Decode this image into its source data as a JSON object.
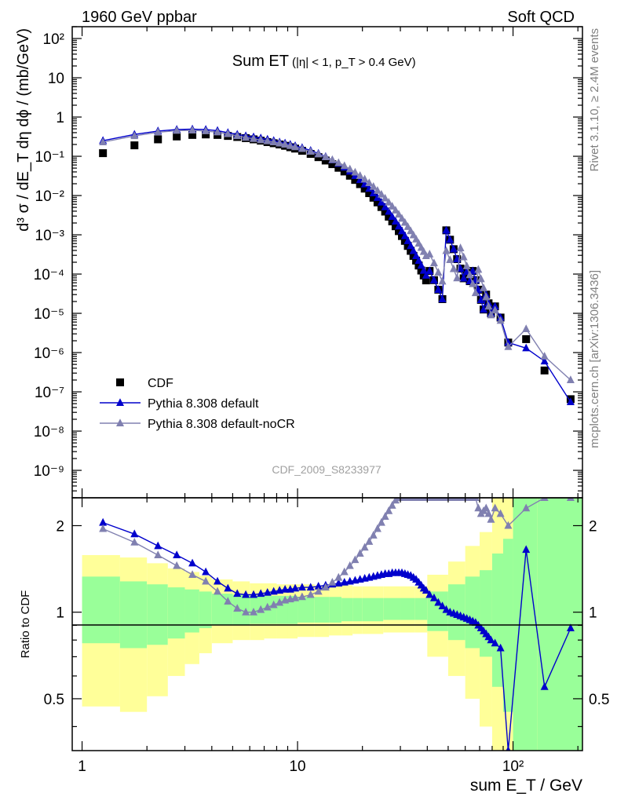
{
  "header": {
    "left": "1960 GeV ppbar",
    "right": "Soft QCD"
  },
  "side_labels": {
    "rivet": "Rivet 3.1.10, ≥ 2.4M events",
    "mcplots": "mcplots.cern.ch [arXiv:1306.3436]"
  },
  "chart_data": [
    {
      "type": "scatter",
      "title": "Sum ET",
      "title_cuts": "(|η| < 1, p_T > 0.4 GeV)",
      "ylabel": "d³ σ / dE_T dη dϕ / (mb/GeV)",
      "analysis_id": "CDF_2009_S8233977",
      "xscale": "log",
      "yscale": "log",
      "xlim": [
        0.9,
        210
      ],
      "ylim": [
        2e-10,
        200
      ],
      "xticks": [
        "1",
        "10",
        "10²"
      ],
      "yticks": [
        "10⁻⁹",
        "10⁻⁸",
        "10⁻⁷",
        "10⁻⁶",
        "10⁻⁵",
        "10⁻⁴",
        "10⁻³",
        "10⁻²",
        "10⁻¹",
        "1",
        "10",
        "10²"
      ],
      "legend_position": "bottom-left",
      "series": [
        {
          "name": "CDF",
          "marker": "square",
          "color": "#000000",
          "x": [
            1.25,
            1.75,
            2.25,
            2.75,
            3.25,
            3.75,
            4.25,
            4.75,
            5.25,
            5.75,
            6.25,
            6.75,
            7.25,
            7.75,
            8.25,
            8.75,
            9.25,
            9.75,
            10.5,
            11.5,
            12.5,
            13.5,
            14.5,
            15.5,
            16.5,
            17.5,
            18.5,
            19.5,
            20.5,
            21.5,
            22.5,
            23.5,
            24.5,
            25.5,
            26.5,
            27.5,
            28.5,
            29.5,
            30.5,
            31.5,
            32.5,
            33.5,
            34.5,
            35.5,
            36.5,
            37.5,
            38.5,
            39.5,
            41.0,
            43.0,
            45.0,
            47.0,
            49.0,
            51.0,
            53.0,
            55.0,
            57.0,
            59.0,
            61.0,
            63.0,
            65.0,
            67.0,
            69.0,
            71.0,
            73.0,
            75.0,
            77.0,
            79.0,
            82.5,
            87.5,
            95.0,
            115.0,
            140.0,
            185.0
          ],
          "values": [
            0.12,
            0.19,
            0.27,
            0.32,
            0.35,
            0.36,
            0.35,
            0.33,
            0.31,
            0.29,
            0.27,
            0.25,
            0.23,
            0.215,
            0.2,
            0.185,
            0.17,
            0.157,
            0.138,
            0.115,
            0.095,
            0.078,
            0.063,
            0.051,
            0.041,
            0.032,
            0.025,
            0.0195,
            0.015,
            0.0115,
            0.0088,
            0.0067,
            0.0051,
            0.0039,
            0.0029,
            0.0022,
            0.00165,
            0.00124,
            0.00093,
            0.0007,
            0.00052,
            0.00039,
            0.00029,
            0.00022,
            0.000165,
            0.000123,
            9.2e-05,
            6.9e-05,
            0.00012,
            7e-05,
            4e-05,
            2.3e-05,
            0.0013,
            0.00075,
            0.00043,
            0.00024,
            0.000138,
            7.8e-05,
            0.000115,
            6.6e-05,
            0.00012,
            7e-05,
            4e-05,
            2.2e-05,
            1.25e-05,
            3e-05,
            1.8e-05,
            1e-05,
            1.5e-05,
            7.8e-06,
            1.8e-06,
            2.2e-06,
            3.5e-07,
            6.5e-08
          ]
        },
        {
          "name": "Pythia 8.308 default",
          "marker": "triangle",
          "color": "#0000cc",
          "x": [
            1.25,
            1.75,
            2.25,
            2.75,
            3.25,
            3.75,
            4.25,
            4.75,
            5.25,
            5.75,
            6.25,
            6.75,
            7.25,
            7.75,
            8.25,
            8.75,
            9.25,
            9.75,
            10.5,
            11.5,
            12.5,
            13.5,
            14.5,
            15.5,
            16.5,
            17.5,
            18.5,
            19.5,
            20.5,
            21.5,
            22.5,
            23.5,
            24.5,
            25.5,
            26.5,
            27.5,
            28.5,
            29.5,
            30.5,
            31.5,
            32.5,
            33.5,
            34.5,
            35.5,
            36.5,
            37.5,
            38.5,
            39.5,
            41.0,
            43.0,
            45.0,
            47.0,
            49.0,
            51.0,
            53.0,
            55.0,
            57.0,
            59.0,
            61.0,
            63.0,
            65.0,
            67.0,
            69.0,
            71.0,
            73.0,
            75.0,
            77.0,
            79.0,
            82.5,
            87.5,
            95.0,
            115.0,
            140.0,
            185.0
          ],
          "values": [
            0.25,
            0.36,
            0.44,
            0.48,
            0.49,
            0.48,
            0.45,
            0.4,
            0.36,
            0.33,
            0.31,
            0.29,
            0.27,
            0.25,
            0.23,
            0.215,
            0.2,
            0.185,
            0.165,
            0.14,
            0.118,
            0.098,
            0.08,
            0.065,
            0.052,
            0.041,
            0.032,
            0.025,
            0.0195,
            0.015,
            0.0115,
            0.0088,
            0.0067,
            0.0051,
            0.0039,
            0.0029,
            0.0022,
            0.00165,
            0.00124,
            0.00093,
            0.0007,
            0.00052,
            0.00039,
            0.00029,
            0.00022,
            0.000165,
            0.000123,
            9.2e-05,
            0.00012,
            7e-05,
            4e-05,
            2.3e-05,
            0.0013,
            0.00075,
            0.00043,
            0.00024,
            0.000138,
            7.8e-05,
            0.000115,
            6.6e-05,
            0.00012,
            7e-05,
            4e-05,
            2.2e-05,
            1.25e-05,
            3e-05,
            1.8e-05,
            1e-05,
            1.5e-05,
            7.8e-06,
            1.8e-06,
            1.3e-06,
            6e-07,
            5.5e-08
          ]
        },
        {
          "name": "Pythia 8.308 default-noCR",
          "marker": "triangle",
          "color": "#8080b0",
          "x": [
            1.25,
            1.75,
            2.25,
            2.75,
            3.25,
            3.75,
            4.25,
            4.75,
            5.25,
            5.75,
            6.25,
            6.75,
            7.25,
            7.75,
            8.25,
            8.75,
            9.25,
            9.75,
            10.5,
            11.5,
            12.5,
            13.5,
            14.5,
            15.5,
            16.5,
            17.5,
            18.5,
            19.5,
            20.5,
            21.5,
            22.5,
            23.5,
            24.5,
            25.5,
            26.5,
            27.5,
            28.5,
            29.5,
            30.5,
            31.5,
            32.5,
            33.5,
            34.5,
            35.5,
            36.5,
            37.5,
            38.5,
            39.5,
            41.0,
            43.0,
            45.0,
            47.0,
            49.0,
            51.0,
            53.0,
            55.0,
            57.0,
            59.0,
            61.0,
            63.0,
            65.0,
            67.0,
            69.0,
            71.0,
            73.0,
            75.0,
            77.0,
            79.0,
            82.5,
            87.5,
            95.0,
            115.0,
            140.0,
            185.0
          ],
          "values": [
            0.23,
            0.33,
            0.41,
            0.45,
            0.46,
            0.44,
            0.41,
            0.37,
            0.33,
            0.3,
            0.28,
            0.26,
            0.245,
            0.23,
            0.215,
            0.2,
            0.185,
            0.172,
            0.155,
            0.132,
            0.113,
            0.096,
            0.081,
            0.068,
            0.057,
            0.047,
            0.039,
            0.032,
            0.026,
            0.021,
            0.0168,
            0.0134,
            0.0107,
            0.0085,
            0.0067,
            0.0053,
            0.0042,
            0.0033,
            0.0026,
            0.00205,
            0.0016,
            0.00125,
            0.00098,
            0.00077,
            0.0006,
            0.00047,
            0.00037,
            0.00029,
            0.00032,
            0.00019,
            0.00011,
            6.5e-05,
            0.00039,
            0.00023,
            0.000135,
            7.9e-05,
            0.00046,
            0.00027,
            0.00016,
            9.5e-05,
            5.6e-05,
            3.3e-05,
            0.00013,
            7.5e-05,
            4.4e-05,
            2.6e-05,
            1.5e-05,
            9e-06,
            1.2e-05,
            6.5e-06,
            1.4e-06,
            4e-06,
            8e-07,
            2e-07
          ]
        }
      ]
    },
    {
      "type": "scatter",
      "ylabel": "Ratio to CDF",
      "xlabel": "sum E_T / GeV",
      "xscale": "log",
      "yscale": "log",
      "xlim": [
        0.9,
        210
      ],
      "ylim": [
        0.33,
        2.5
      ],
      "xticks": [
        "1",
        "10",
        "10²"
      ],
      "yticks": [
        "0.5",
        "1",
        "2"
      ],
      "bands": {
        "bin_edges": [
          1.0,
          1.5,
          2.0,
          2.5,
          3.0,
          3.5,
          4.0,
          5.0,
          6.0,
          7.0,
          8.0,
          9.0,
          10.0,
          12.0,
          14.0,
          16.0,
          18.0,
          20.0,
          25.0,
          30.0,
          35.0,
          40.0,
          50.0,
          60.0,
          70.0,
          80.0,
          90.0,
          100.0,
          130.0,
          210.0
        ],
        "inner_lo": [
          0.78,
          0.75,
          0.77,
          0.81,
          0.85,
          0.88,
          0.9,
          0.9,
          0.91,
          0.91,
          0.91,
          0.91,
          0.92,
          0.92,
          0.92,
          0.93,
          0.93,
          0.93,
          0.94,
          0.94,
          0.94,
          0.86,
          0.8,
          0.75,
          0.7,
          0.55,
          0.45,
          0.33,
          0.33
        ],
        "inner_hi": [
          1.33,
          1.28,
          1.25,
          1.22,
          1.2,
          1.18,
          1.16,
          1.15,
          1.14,
          1.14,
          1.14,
          1.14,
          1.13,
          1.13,
          1.13,
          1.12,
          1.12,
          1.12,
          1.12,
          1.12,
          1.12,
          1.18,
          1.25,
          1.33,
          1.4,
          1.6,
          1.8,
          2.5,
          2.5
        ],
        "outer_lo": [
          0.47,
          0.45,
          0.51,
          0.6,
          0.66,
          0.72,
          0.78,
          0.8,
          0.8,
          0.81,
          0.81,
          0.81,
          0.82,
          0.82,
          0.83,
          0.83,
          0.84,
          0.84,
          0.85,
          0.85,
          0.85,
          0.7,
          0.6,
          0.5,
          0.4,
          0.33,
          0.33,
          0.33,
          0.33
        ],
        "outer_hi": [
          1.58,
          1.55,
          1.48,
          1.42,
          1.38,
          1.34,
          1.3,
          1.28,
          1.26,
          1.26,
          1.25,
          1.25,
          1.25,
          1.24,
          1.24,
          1.24,
          1.23,
          1.23,
          1.23,
          1.23,
          1.23,
          1.35,
          1.5,
          1.7,
          1.9,
          2.5,
          2.5,
          2.5,
          2.5
        ]
      },
      "series": [
        {
          "name": "Pythia 8.308 default",
          "x": [
            1.25,
            1.75,
            2.25,
            2.75,
            3.25,
            3.75,
            4.25,
            4.75,
            5.25,
            5.75,
            6.25,
            6.75,
            7.25,
            7.75,
            8.25,
            8.75,
            9.25,
            9.75,
            10.5,
            11.5,
            12.5,
            13.5,
            14.5,
            15.5,
            16.5,
            17.5,
            18.5,
            19.5,
            20.5,
            21.5,
            22.5,
            23.5,
            24.5,
            25.5,
            26.5,
            27.5,
            28.5,
            29.5,
            30.5,
            31.5,
            32.5,
            33.5,
            34.5,
            35.5,
            36.5,
            37.5,
            38.5,
            39.5,
            41.0,
            43.0,
            45.0,
            47.0,
            49.0,
            51.0,
            53.0,
            55.0,
            57.0,
            59.0,
            61.0,
            63.0,
            65.0,
            67.0,
            69.0,
            71.0,
            73.0,
            75.0,
            77.0,
            79.0,
            82.5,
            87.5,
            95.0,
            115.0,
            140.0,
            185.0
          ],
          "values": [
            2.05,
            1.87,
            1.7,
            1.58,
            1.48,
            1.38,
            1.28,
            1.21,
            1.16,
            1.15,
            1.15,
            1.16,
            1.17,
            1.18,
            1.19,
            1.2,
            1.2,
            1.21,
            1.22,
            1.22,
            1.23,
            1.24,
            1.25,
            1.26,
            1.27,
            1.28,
            1.29,
            1.3,
            1.31,
            1.32,
            1.33,
            1.34,
            1.35,
            1.36,
            1.36,
            1.37,
            1.37,
            1.37,
            1.37,
            1.36,
            1.35,
            1.34,
            1.32,
            1.3,
            1.27,
            1.24,
            1.21,
            1.19,
            1.15,
            1.12,
            1.08,
            1.05,
            1.02,
            1.0,
            0.99,
            0.98,
            0.97,
            0.96,
            0.95,
            0.94,
            0.93,
            0.92,
            0.9,
            0.88,
            0.86,
            0.84,
            0.82,
            0.8,
            0.78,
            0.75,
            0.33,
            1.65,
            0.55,
            0.88
          ]
        },
        {
          "name": "Pythia 8.308 default-noCR",
          "x": [
            1.25,
            1.75,
            2.25,
            2.75,
            3.25,
            3.75,
            4.25,
            4.75,
            5.25,
            5.75,
            6.25,
            6.75,
            7.25,
            7.75,
            8.25,
            8.75,
            9.25,
            9.75,
            10.5,
            11.5,
            12.5,
            13.5,
            14.5,
            15.5,
            16.5,
            17.5,
            18.5,
            19.5,
            20.5,
            21.5,
            22.5,
            23.5,
            24.5,
            25.5,
            26.5,
            27.5,
            28.5,
            29.5,
            30.5,
            31.5,
            32.5,
            33.5,
            34.5,
            35.5,
            36.5,
            37.5,
            38.5,
            39.5,
            41.0,
            43.0,
            45.0,
            47.0,
            49.0,
            51.0,
            53.0,
            55.0,
            57.0,
            59.0,
            61.0,
            63.0,
            65.0,
            67.0,
            69.0,
            71.0,
            73.0,
            75.0,
            77.0,
            79.0,
            82.5,
            87.5,
            95.0,
            115.0,
            140.0,
            185.0
          ],
          "values": [
            1.95,
            1.75,
            1.58,
            1.45,
            1.35,
            1.28,
            1.18,
            1.09,
            1.03,
            1.0,
            1.0,
            1.02,
            1.04,
            1.06,
            1.08,
            1.1,
            1.11,
            1.12,
            1.13,
            1.15,
            1.18,
            1.22,
            1.27,
            1.32,
            1.38,
            1.45,
            1.52,
            1.6,
            1.68,
            1.76,
            1.85,
            1.95,
            2.05,
            2.15,
            2.25,
            2.35,
            2.45,
            2.5,
            2.5,
            2.5,
            2.5,
            2.5,
            2.5,
            2.5,
            2.5,
            2.5,
            2.5,
            2.5,
            2.5,
            2.5,
            2.5,
            2.5,
            2.5,
            2.5,
            2.5,
            2.5,
            2.5,
            2.5,
            2.5,
            2.5,
            2.5,
            2.5,
            2.3,
            2.2,
            2.25,
            2.3,
            2.2,
            2.1,
            2.3,
            2.2,
            2.0,
            2.3,
            2.5,
            2.5
          ]
        }
      ]
    }
  ]
}
